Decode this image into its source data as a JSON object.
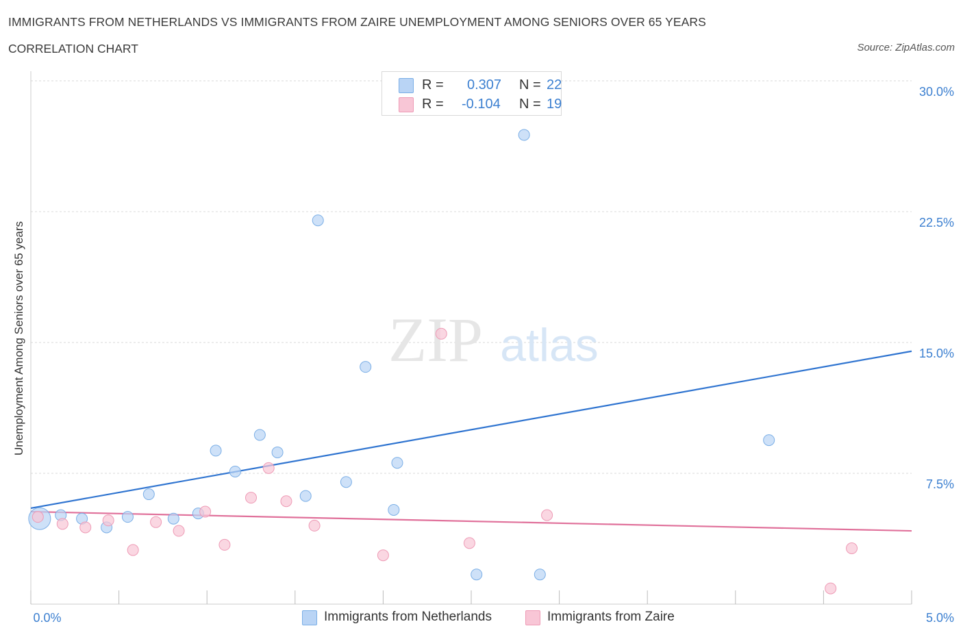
{
  "title": "IMMIGRANTS FROM NETHERLANDS VS IMMIGRANTS FROM ZAIRE UNEMPLOYMENT AMONG SENIORS OVER 65 YEARS",
  "subtitle": "CORRELATION CHART",
  "source": "Source: ZipAtlas.com",
  "watermark": {
    "zip": "ZIP",
    "atlas": "atlas"
  },
  "legend": {
    "r_label": "R =",
    "n_label": "N =",
    "series": [
      {
        "name": "Immigrants from Netherlands",
        "r": "0.307",
        "n": "22",
        "fill": "#b9d4f5",
        "stroke": "#7aaee6",
        "line": "#2f74d0"
      },
      {
        "name": "Immigrants from Zaire",
        "r": "-0.104",
        "n": "19",
        "fill": "#f8c6d6",
        "stroke": "#ee9ab5",
        "line": "#e0709a"
      }
    ]
  },
  "colors": {
    "axis_text": "#3b7fd0",
    "grid": "#d9d9d9",
    "axis": "#cccccc"
  },
  "chart_data": {
    "type": "scatter",
    "title": "IMMIGRANTS FROM NETHERLANDS VS IMMIGRANTS FROM ZAIRE UNEMPLOYMENT AMONG SENIORS OVER 65 YEARS",
    "xlabel": "",
    "ylabel": "Unemployment Among Seniors over 65 years",
    "xlim": [
      0,
      5
    ],
    "ylim": [
      0,
      30
    ],
    "x_tick_labels": [
      "0.0%",
      "5.0%"
    ],
    "y_ticks": [
      7.5,
      15,
      22.5,
      30
    ],
    "y_tick_labels": [
      "7.5%",
      "15.0%",
      "22.5%",
      "30.0%"
    ],
    "grid": true,
    "legend_position": "top-center",
    "series": [
      {
        "name": "Immigrants from Netherlands",
        "trend": {
          "x": [
            0,
            5
          ],
          "y": [
            5.5,
            14.5
          ]
        },
        "points": [
          {
            "x": 0.05,
            "y": 4.9,
            "big": true
          },
          {
            "x": 0.17,
            "y": 5.1
          },
          {
            "x": 0.29,
            "y": 4.9
          },
          {
            "x": 0.43,
            "y": 4.4
          },
          {
            "x": 0.55,
            "y": 5.0
          },
          {
            "x": 0.67,
            "y": 6.3
          },
          {
            "x": 0.81,
            "y": 4.9
          },
          {
            "x": 0.95,
            "y": 5.2
          },
          {
            "x": 1.05,
            "y": 8.8
          },
          {
            "x": 1.16,
            "y": 7.6
          },
          {
            "x": 1.3,
            "y": 9.7
          },
          {
            "x": 1.4,
            "y": 8.7
          },
          {
            "x": 1.56,
            "y": 6.2
          },
          {
            "x": 1.63,
            "y": 22.0
          },
          {
            "x": 1.79,
            "y": 7.0
          },
          {
            "x": 1.9,
            "y": 13.6
          },
          {
            "x": 2.06,
            "y": 5.4
          },
          {
            "x": 2.08,
            "y": 8.1
          },
          {
            "x": 2.53,
            "y": 1.7
          },
          {
            "x": 2.8,
            "y": 26.9
          },
          {
            "x": 2.89,
            "y": 1.7
          },
          {
            "x": 4.19,
            "y": 9.4
          }
        ]
      },
      {
        "name": "Immigrants from Zaire",
        "trend": {
          "x": [
            0,
            5
          ],
          "y": [
            5.3,
            4.2
          ]
        },
        "points": [
          {
            "x": 0.04,
            "y": 5.0
          },
          {
            "x": 0.18,
            "y": 4.6
          },
          {
            "x": 0.31,
            "y": 4.4
          },
          {
            "x": 0.44,
            "y": 4.8
          },
          {
            "x": 0.58,
            "y": 3.1
          },
          {
            "x": 0.71,
            "y": 4.7
          },
          {
            "x": 0.84,
            "y": 4.2
          },
          {
            "x": 0.99,
            "y": 5.3
          },
          {
            "x": 1.1,
            "y": 3.4
          },
          {
            "x": 1.25,
            "y": 6.1
          },
          {
            "x": 1.35,
            "y": 7.8
          },
          {
            "x": 1.45,
            "y": 5.9
          },
          {
            "x": 1.61,
            "y": 4.5
          },
          {
            "x": 2.0,
            "y": 2.8
          },
          {
            "x": 2.33,
            "y": 15.5
          },
          {
            "x": 2.49,
            "y": 3.5
          },
          {
            "x": 2.93,
            "y": 5.1
          },
          {
            "x": 4.54,
            "y": 0.9
          },
          {
            "x": 4.66,
            "y": 3.2
          }
        ]
      }
    ]
  }
}
